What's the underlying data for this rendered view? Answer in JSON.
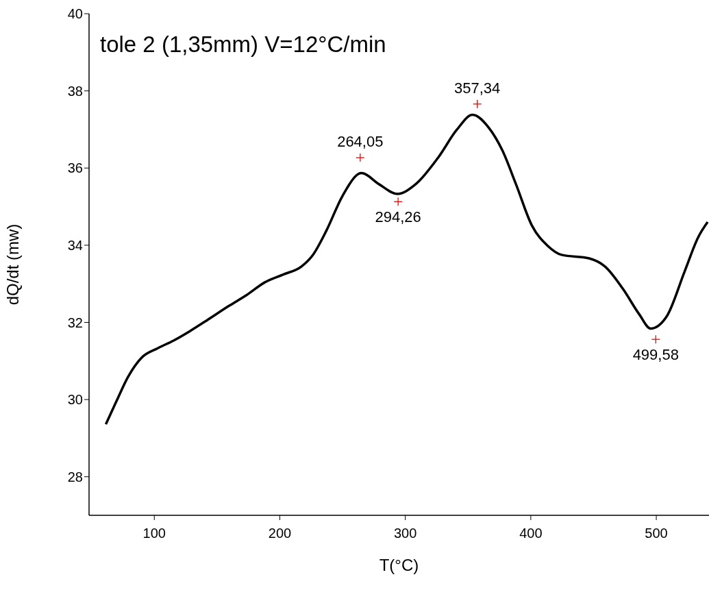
{
  "chart_data": {
    "type": "line",
    "title": "tole 2 (1,35mm) V=12°C/min",
    "xlabel": "T(°C)",
    "ylabel": "dQ/dt (mw)",
    "xlim": [
      48,
      542
    ],
    "ylim": [
      27,
      40
    ],
    "xticks": [
      100,
      200,
      300,
      400,
      500
    ],
    "yticks": [
      28,
      30,
      32,
      34,
      36,
      38,
      40
    ],
    "grid": false,
    "series": [
      {
        "color": "#000000",
        "marker": "none",
        "line_style": "solid",
        "x": [
          61.4,
          70,
          79.1,
          90,
          102.7,
          115.4,
          128.2,
          142.7,
          159.1,
          173.6,
          188.2,
          202.7,
          217.3,
          226.4,
          237.3,
          250,
          265.1,
          279.1,
          293.6,
          308.2,
          326.4,
          341,
          353.6,
          366.4,
          377.3,
          388.2,
          400.9,
          413.6,
          424.5,
          446.4,
          459.1,
          473.6,
          486.4,
          495.5,
          508.2,
          522.7,
          533.6,
          540.9
        ],
        "values": [
          29.36,
          29.97,
          30.59,
          31.09,
          31.33,
          31.53,
          31.77,
          32.07,
          32.42,
          32.71,
          33.04,
          33.24,
          33.45,
          33.75,
          34.39,
          35.28,
          35.87,
          35.58,
          35.33,
          35.58,
          36.28,
          36.99,
          37.38,
          37.05,
          36.46,
          35.58,
          34.51,
          33.98,
          33.75,
          33.66,
          33.45,
          32.86,
          32.21,
          31.84,
          32.15,
          33.33,
          34.22,
          34.6
        ]
      },
      {
        "type": "scatter",
        "color": "#ff0000",
        "marker": "cross",
        "x": [
          264.05,
          294.26,
          357.34,
          499.58
        ],
        "values": [
          36.27,
          35.13,
          37.66,
          31.56
        ]
      }
    ],
    "annotations": [
      {
        "text": "264,05",
        "x": 264.05,
        "y": 36.27
      },
      {
        "text": "294,26",
        "x": 294.26,
        "y": 35.13
      },
      {
        "text": "357,34",
        "x": 357.34,
        "y": 37.66
      },
      {
        "text": "499,58",
        "x": 499.58,
        "y": 31.56
      }
    ]
  }
}
